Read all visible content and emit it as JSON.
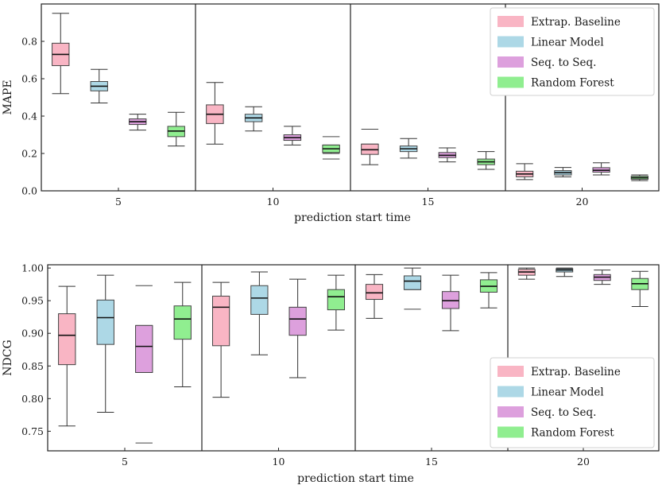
{
  "chart_data": [
    {
      "type": "boxplot",
      "ylabel": "MAPE",
      "xlabel": "prediction start time",
      "ylim": [
        0,
        1.0
      ],
      "yticks": [
        "0.0",
        "0.2",
        "0.4",
        "0.6",
        "0.8"
      ],
      "ytick_values": [
        0.0,
        0.2,
        0.4,
        0.6,
        0.8
      ],
      "categories": [
        "5",
        "10",
        "15",
        "20"
      ],
      "legend_position": "top-right",
      "series": [
        {
          "name": "Extrap. Baseline",
          "color": "#f9b5c4",
          "boxes": [
            {
              "whislo": 0.52,
              "q1": 0.67,
              "med": 0.73,
              "q3": 0.79,
              "whishi": 0.95,
              "fliers": []
            },
            {
              "whislo": 0.25,
              "q1": 0.36,
              "med": 0.41,
              "q3": 0.46,
              "whishi": 0.58,
              "fliers": []
            },
            {
              "whislo": 0.14,
              "q1": 0.195,
              "med": 0.22,
              "q3": 0.25,
              "whishi": 0.25,
              "fliers": [
                0.33
              ]
            },
            {
              "whislo": 0.06,
              "q1": 0.075,
              "med": 0.09,
              "q3": 0.105,
              "whishi": 0.145,
              "fliers": []
            }
          ]
        },
        {
          "name": "Linear Model",
          "color": "#add8e6",
          "boxes": [
            {
              "whislo": 0.47,
              "q1": 0.535,
              "med": 0.56,
              "q3": 0.585,
              "whishi": 0.65,
              "fliers": []
            },
            {
              "whislo": 0.32,
              "q1": 0.37,
              "med": 0.39,
              "q3": 0.41,
              "whishi": 0.45,
              "fliers": []
            },
            {
              "whislo": 0.175,
              "q1": 0.21,
              "med": 0.225,
              "q3": 0.24,
              "whishi": 0.28,
              "fliers": []
            },
            {
              "whislo": 0.075,
              "q1": 0.085,
              "med": 0.097,
              "q3": 0.108,
              "whishi": 0.125,
              "fliers": []
            }
          ]
        },
        {
          "name": "Seq. to Seq.",
          "color": "#dda0dd",
          "boxes": [
            {
              "whislo": 0.325,
              "q1": 0.355,
              "med": 0.37,
              "q3": 0.385,
              "whishi": 0.41,
              "fliers": []
            },
            {
              "whislo": 0.245,
              "q1": 0.27,
              "med": 0.285,
              "q3": 0.3,
              "whishi": 0.345,
              "fliers": []
            },
            {
              "whislo": 0.155,
              "q1": 0.178,
              "med": 0.19,
              "q3": 0.205,
              "whishi": 0.23,
              "fliers": []
            },
            {
              "whislo": 0.085,
              "q1": 0.1,
              "med": 0.11,
              "q3": 0.124,
              "whishi": 0.15,
              "fliers": []
            }
          ]
        },
        {
          "name": "Random Forest",
          "color": "#90ee90",
          "boxes": [
            {
              "whislo": 0.24,
              "q1": 0.29,
              "med": 0.32,
              "q3": 0.345,
              "whishi": 0.42,
              "fliers": []
            },
            {
              "whislo": 0.2,
              "q1": 0.205,
              "med": 0.225,
              "q3": 0.245,
              "whishi": 0.245,
              "fliers": [
                0.17,
                0.29
              ]
            },
            {
              "whislo": 0.115,
              "q1": 0.14,
              "med": 0.155,
              "q3": 0.17,
              "whishi": 0.21,
              "fliers": []
            },
            {
              "whislo": 0.055,
              "q1": 0.062,
              "med": 0.07,
              "q3": 0.078,
              "whishi": 0.085,
              "fliers": []
            }
          ]
        }
      ]
    },
    {
      "type": "boxplot",
      "ylabel": "NDCG",
      "xlabel": "prediction start time",
      "ylim": [
        0.72,
        1.005
      ],
      "yticks": [
        "0.75",
        "0.80",
        "0.85",
        "0.90",
        "0.95",
        "1.00"
      ],
      "ytick_values": [
        0.75,
        0.8,
        0.85,
        0.9,
        0.95,
        1.0
      ],
      "categories": [
        "5",
        "10",
        "15",
        "20"
      ],
      "legend_position": "bottom-right",
      "series": [
        {
          "name": "Extrap. Baseline",
          "color": "#f9b5c4",
          "boxes": [
            {
              "whislo": 0.758,
              "q1": 0.852,
              "med": 0.897,
              "q3": 0.93,
              "whishi": 0.972,
              "fliers": []
            },
            {
              "whislo": 0.802,
              "q1": 0.881,
              "med": 0.94,
              "q3": 0.957,
              "whishi": 0.978,
              "fliers": []
            },
            {
              "whislo": 0.923,
              "q1": 0.952,
              "med": 0.962,
              "q3": 0.975,
              "whishi": 0.99,
              "fliers": []
            },
            {
              "whislo": 0.983,
              "q1": 0.989,
              "med": 0.994,
              "q3": 0.998,
              "whishi": 1.0,
              "fliers": []
            }
          ]
        },
        {
          "name": "Linear Model",
          "color": "#add8e6",
          "boxes": [
            {
              "whislo": 0.779,
              "q1": 0.883,
              "med": 0.924,
              "q3": 0.951,
              "whishi": 0.989,
              "fliers": []
            },
            {
              "whislo": 0.867,
              "q1": 0.929,
              "med": 0.954,
              "q3": 0.973,
              "whishi": 0.994,
              "fliers": []
            },
            {
              "whislo": 0.967,
              "q1": 0.967,
              "med": 0.98,
              "q3": 0.988,
              "whishi": 1.0,
              "fliers": [
                0.937
              ]
            },
            {
              "whislo": 0.987,
              "q1": 0.994,
              "med": 0.997,
              "q3": 0.999,
              "whishi": 1.0,
              "fliers": []
            }
          ]
        },
        {
          "name": "Seq. to Seq.",
          "color": "#dda0dd",
          "boxes": [
            {
              "whislo": 0.84,
              "q1": 0.84,
              "med": 0.88,
              "q3": 0.912,
              "whishi": 0.912,
              "fliers": [
                0.732,
                0.973
              ]
            },
            {
              "whislo": 0.832,
              "q1": 0.897,
              "med": 0.922,
              "q3": 0.94,
              "whishi": 0.983,
              "fliers": []
            },
            {
              "whislo": 0.904,
              "q1": 0.938,
              "med": 0.95,
              "q3": 0.964,
              "whishi": 0.989,
              "fliers": []
            },
            {
              "whislo": 0.975,
              "q1": 0.981,
              "med": 0.986,
              "q3": 0.99,
              "whishi": 0.997,
              "fliers": []
            }
          ]
        },
        {
          "name": "Random Forest",
          "color": "#90ee90",
          "boxes": [
            {
              "whislo": 0.818,
              "q1": 0.891,
              "med": 0.922,
              "q3": 0.942,
              "whishi": 0.978,
              "fliers": []
            },
            {
              "whislo": 0.905,
              "q1": 0.936,
              "med": 0.956,
              "q3": 0.967,
              "whishi": 0.989,
              "fliers": []
            },
            {
              "whislo": 0.939,
              "q1": 0.963,
              "med": 0.972,
              "q3": 0.982,
              "whishi": 0.993,
              "fliers": []
            },
            {
              "whislo": 0.941,
              "q1": 0.967,
              "med": 0.976,
              "q3": 0.984,
              "whishi": 0.995,
              "fliers": []
            }
          ]
        }
      ]
    }
  ]
}
